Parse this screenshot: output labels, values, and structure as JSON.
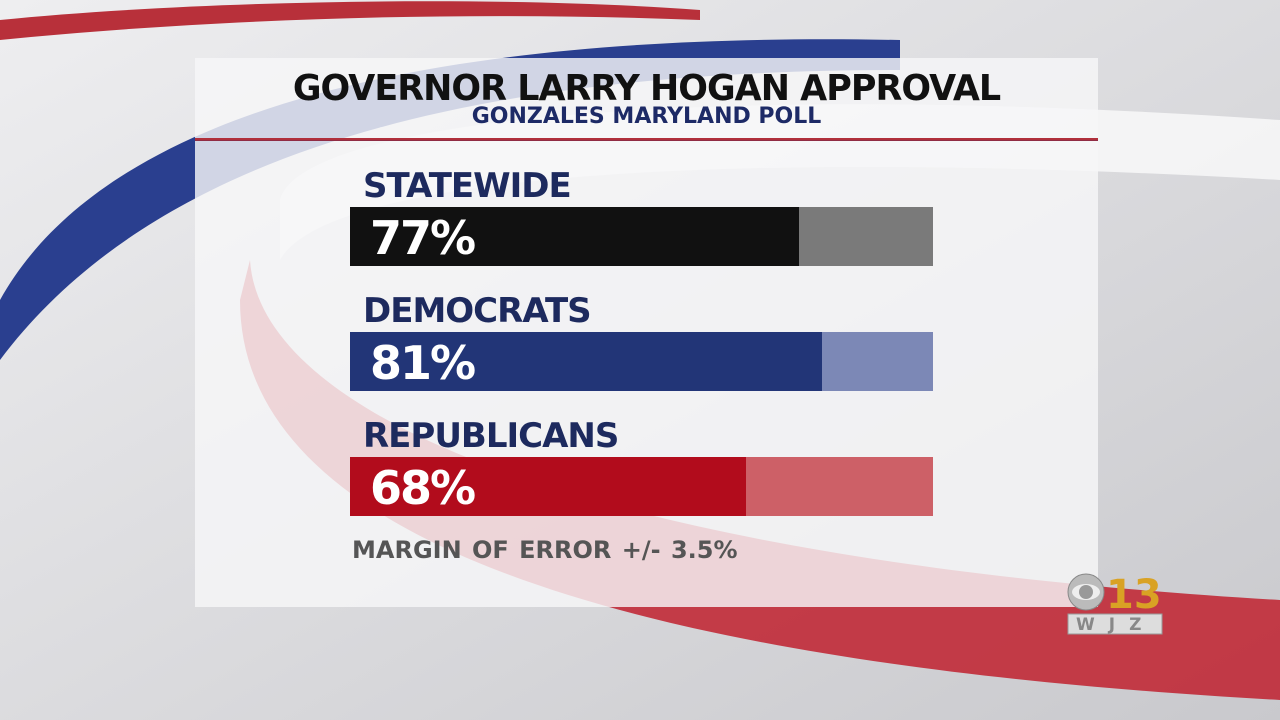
{
  "colors": {
    "statewide": "#111111",
    "statewide_rest": "#7a7a7a",
    "democrats": "#223577",
    "democrats_rest": "#7c88b6",
    "republicans": "#b20c1c",
    "republicans_rest": "#cd6067"
  },
  "chart_data": {
    "type": "bar",
    "title": "GOVERNOR LARRY HOGAN APPROVAL",
    "subtitle": "GONZALES MARYLAND POLL",
    "categories": [
      "STATEWIDE",
      "DEMOCRATS",
      "REPUBLICANS"
    ],
    "values": [
      77,
      81,
      68
    ],
    "labels": [
      "77%",
      "81%",
      "68%"
    ],
    "ylim": [
      0,
      100
    ],
    "note": "MARGIN OF ERROR  +/- 3.5%"
  },
  "logo": {
    "text": "CBS 13 WJZ"
  }
}
